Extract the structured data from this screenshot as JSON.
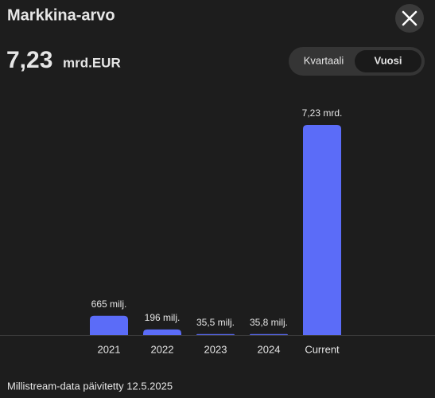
{
  "header": {
    "title": "Markkina-arvo",
    "value": "7,23",
    "unit": "mrd.EUR",
    "toggle": [
      "Kvartaali",
      "Vuosi"
    ]
  },
  "chart_data": {
    "type": "bar",
    "categories": [
      "2021",
      "2022",
      "2023",
      "2024",
      "Current"
    ],
    "values": [
      665,
      196,
      35.5,
      35.8,
      7230
    ],
    "value_labels": [
      "665 milj.",
      "196 milj.",
      "35,5 milj.",
      "35,8 milj.",
      "7,23 mrd."
    ],
    "color": "#5b6cf8"
  },
  "footer": {
    "source": "Millistream-data päivitetty 12.5.2025"
  }
}
